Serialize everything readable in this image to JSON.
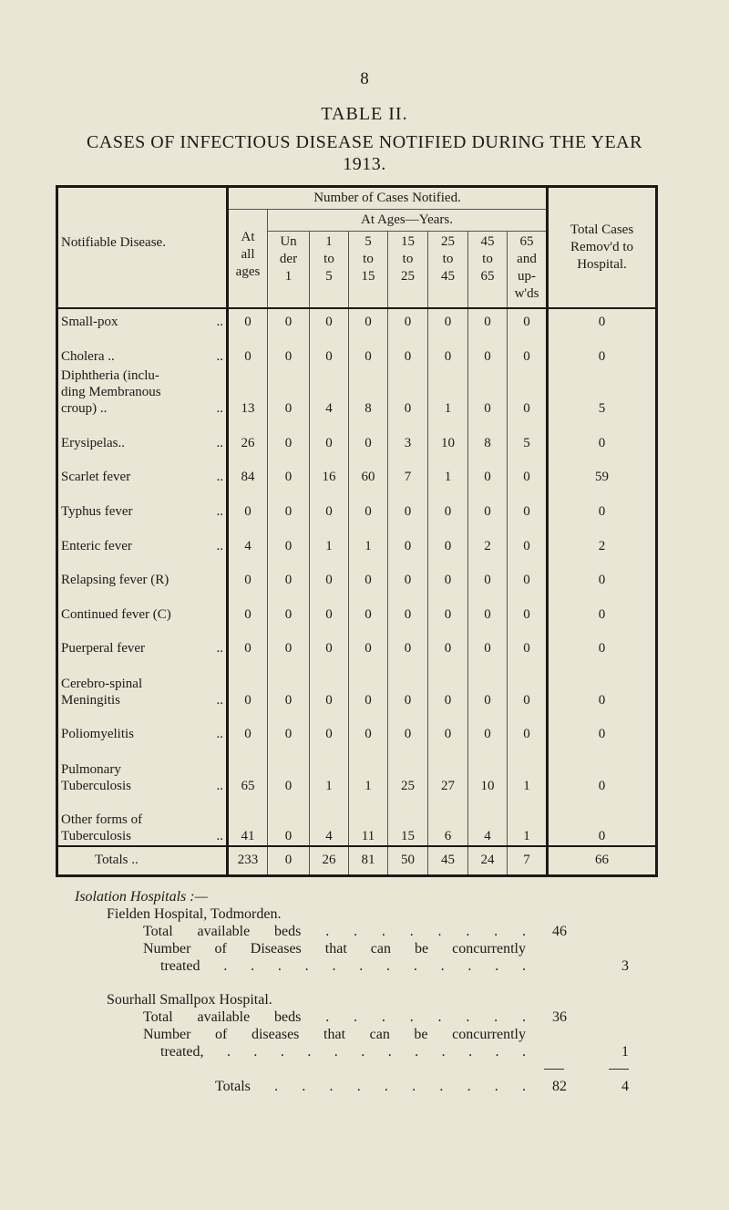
{
  "page_number": "8",
  "table_title": "TABLE II.",
  "table_subtitle": "CASES OF INFECTIOUS DISEASE NOTIFIED DURING THE YEAR 1913.",
  "headers": {
    "disease": "Notifiable Disease.",
    "group": "Number of Cases Notified.",
    "ages_group": "At Ages—Years.",
    "all_ages": "At all ages",
    "age_cols": [
      "Un der 1",
      "1 to 5",
      "5 to 15",
      "15 to 25",
      "25 to 45",
      "45 to 65",
      "65 and up- w'ds"
    ],
    "removed": "Total Cases Remov'd to Hospital."
  },
  "rows": [
    {
      "name": "Small-pox",
      "leader": "..",
      "values": [
        "0",
        "0",
        "0",
        "0",
        "0",
        "0",
        "0",
        "0",
        "0"
      ]
    },
    {
      "name": "Cholera   ..",
      "leader": "..",
      "values": [
        "0",
        "0",
        "0",
        "0",
        "0",
        "0",
        "0",
        "0",
        "0"
      ]
    },
    {
      "name": "Diphtheria (inclu-\nding Membranous\n croup)   ..",
      "leader": "..",
      "values": [
        "13",
        "0",
        "4",
        "8",
        "0",
        "1",
        "0",
        "0",
        "5"
      ]
    },
    {
      "name": "Erysipelas..",
      "leader": "..",
      "values": [
        "26",
        "0",
        "0",
        "0",
        "3",
        "10",
        "8",
        "5",
        "0"
      ]
    },
    {
      "name": "Scarlet fever",
      "leader": "..",
      "values": [
        "84",
        "0",
        "16",
        "60",
        "7",
        "1",
        "0",
        "0",
        "59"
      ]
    },
    {
      "name": "Typhus fever",
      "leader": "..",
      "values": [
        "0",
        "0",
        "0",
        "0",
        "0",
        "0",
        "0",
        "0",
        "0"
      ]
    },
    {
      "name": "Enteric fever",
      "leader": "..",
      "values": [
        "4",
        "0",
        "1",
        "1",
        "0",
        "0",
        "2",
        "0",
        "2"
      ]
    },
    {
      "name": "Relapsing fever (R)",
      "leader": "",
      "values": [
        "0",
        "0",
        "0",
        "0",
        "0",
        "0",
        "0",
        "0",
        "0"
      ]
    },
    {
      "name": "Continued fever (C)",
      "leader": "",
      "values": [
        "0",
        "0",
        "0",
        "0",
        "0",
        "0",
        "0",
        "0",
        "0"
      ]
    },
    {
      "name": "Puerperal fever",
      "leader": "..",
      "values": [
        "0",
        "0",
        "0",
        "0",
        "0",
        "0",
        "0",
        "0",
        "0"
      ]
    },
    {
      "name": "Cerebro-spinal\n  Meningitis",
      "leader": "..",
      "values": [
        "0",
        "0",
        "0",
        "0",
        "0",
        "0",
        "0",
        "0",
        "0"
      ]
    },
    {
      "name": "Poliomyelitis",
      "leader": "..",
      "values": [
        "0",
        "0",
        "0",
        "0",
        "0",
        "0",
        "0",
        "0",
        "0"
      ]
    },
    {
      "name": "Pulmonary\n  Tuberculosis",
      "leader": "..",
      "values": [
        "65",
        "0",
        "1",
        "1",
        "25",
        "27",
        "10",
        "1",
        "0"
      ]
    },
    {
      "name": "Other forms of\n  Tuberculosis",
      "leader": "..",
      "values": [
        "41",
        "0",
        "4",
        "11",
        "15",
        "6",
        "4",
        "1",
        "0"
      ]
    }
  ],
  "totals": {
    "label": "Totals ..",
    "leader": "..",
    "values": [
      "233",
      "0",
      "26",
      "81",
      "50",
      "45",
      "24",
      "7",
      "66"
    ]
  },
  "isolation": {
    "heading": "Isolation Hospitals :—",
    "fielden": {
      "name": "Fielden Hospital, Todmorden.",
      "beds_label": "Total available beds   . .   . .   . .   . .",
      "beds": "46",
      "diseases_label": "Number of Diseases that can be concurrently",
      "diseases_label2": "treated  . .   . .   . .   . .   . .   . .",
      "diseases": "3"
    },
    "sourhall": {
      "name": "Sourhall Smallpox Hospital.",
      "beds_label": "Total available beds   . .   . .   . .   . .",
      "beds": "36",
      "diseases_label": "Number of diseases that can be concurrently",
      "diseases_label2": "treated, . .   . .   . .   . .   . .   . .",
      "diseases": "1"
    },
    "totals_label": "Totals   . .   . .   . .   . .   . .",
    "totals_beds": "82",
    "totals_diseases": "4"
  }
}
